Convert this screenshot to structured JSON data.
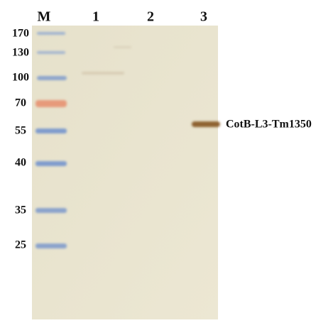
{
  "lanes": [
    "M",
    "1",
    "2",
    "3"
  ],
  "marker_sizes": [
    "170",
    "130",
    "100",
    "70",
    "55",
    "40",
    "35",
    "25"
  ],
  "band_label": "CotB-L3-Tm1350"
}
